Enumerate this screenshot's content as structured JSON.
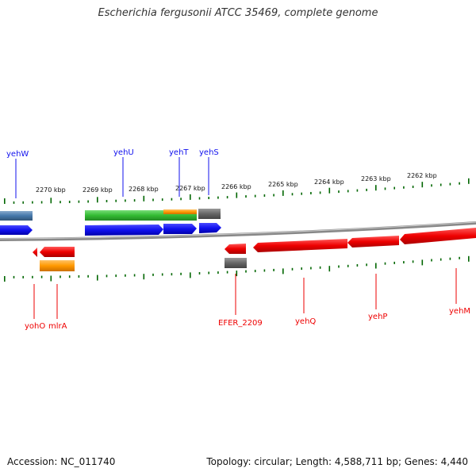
{
  "title": "Escherichia fergusonii ATCC 35469, complete genome",
  "footer": {
    "accession": "Accession: NC_011740",
    "summary": "Topology: circular; Length: 4,588,711 bp; Genes: 4,440"
  },
  "colors": {
    "forward_cds": "#1010ee",
    "reverse_cds": "#ee0000",
    "orange_feature": "#ff9900",
    "green_feature": "#33bb33",
    "gray_feature": "#666666",
    "steelblue_feature": "#4477aa",
    "ticks": "#006600",
    "backbone": "#888888"
  },
  "scale_labels": [
    "2270 kbp",
    "2269 kbp",
    "2268 kbp",
    "2267 kbp",
    "2266 kbp",
    "2265 kbp",
    "2264 kbp",
    "2263 kbp",
    "2262 kbp"
  ],
  "forward_genes": [
    "yehW",
    "yehU",
    "yehT",
    "yehS"
  ],
  "reverse_genes": [
    "yohO",
    "mlrA",
    "EFER_2209",
    "yehQ",
    "yehP",
    "yehM"
  ]
}
